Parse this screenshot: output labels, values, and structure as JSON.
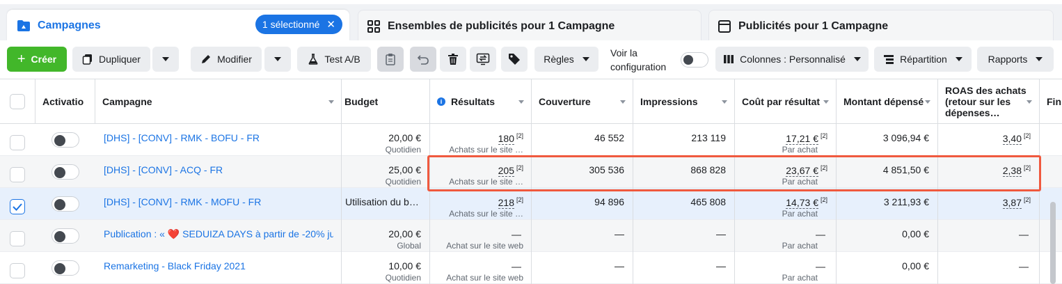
{
  "tabs": {
    "campaigns": {
      "label": "Campagnes",
      "selected_badge": "1 sélectionné"
    },
    "adsets": {
      "label": "Ensembles de publicités pour 1 Campagne"
    },
    "ads": {
      "label": "Publicités pour 1 Campagne"
    }
  },
  "toolbar": {
    "create_label": "Créer",
    "duplicate_label": "Dupliquer",
    "edit_label": "Modifier",
    "ab_test_label": "Test A/B",
    "rules_label": "Règles",
    "view_config_line1": "Voir la",
    "view_config_line2": "configuration",
    "columns_label": "Colonnes : Personnalisé",
    "breakdown_label": "Répartition",
    "reports_label": "Rapports"
  },
  "table": {
    "headers": {
      "activation": "Activatio",
      "campaign": "Campagne",
      "budget": "Budget",
      "results": "Résultats",
      "reach": "Couverture",
      "impressions": "Impressions",
      "cost_per_result": "Coût par résultat",
      "amount_spent": "Montant dépensé",
      "roas_line1": "ROAS des achats",
      "roas_line2": "(retour sur les",
      "roas_line3": "dépenses…",
      "end": "Fin"
    },
    "rows": [
      {
        "name": "[DHS] - [CONV] - RMK - BOFU - FR",
        "budget": "20,00 €",
        "budget_type": "Quotidien",
        "results": "180",
        "results_fn": "[2]",
        "results_sub": "Achats sur le site …",
        "reach": "46 552",
        "impressions": "213 119",
        "cpr": "17,21 €",
        "cpr_fn": "[2]",
        "cpr_sub": "Par achat",
        "spent": "3 096,94 €",
        "roas": "3,40",
        "roas_fn": "[2]"
      },
      {
        "name": "[DHS] - [CONV] - ACQ - FR",
        "budget": "25,00 €",
        "budget_type": "Quotidien",
        "results": "205",
        "results_fn": "[2]",
        "results_sub": "Achats sur le site …",
        "reach": "305 536",
        "impressions": "868 828",
        "cpr": "23,67 €",
        "cpr_fn": "[2]",
        "cpr_sub": "Par achat",
        "spent": "4 851,50 €",
        "roas": "2,38",
        "roas_fn": "[2]"
      },
      {
        "name": "[DHS] - [CONV] - RMK - MOFU - FR",
        "budget": "Utilisation du b…",
        "budget_type": "",
        "results": "218",
        "results_fn": "[2]",
        "results_sub": "Achats sur le site …",
        "reach": "94 896",
        "impressions": "465 808",
        "cpr": "14,73 €",
        "cpr_fn": "[2]",
        "cpr_sub": "Par achat",
        "spent": "3 211,93 €",
        "roas": "3,87",
        "roas_fn": "[2]"
      },
      {
        "name": "Publication : « ❤️ SEDUIZA DAYS à partir de -20% ju…",
        "budget": "20,00 €",
        "budget_type": "Global",
        "results": "—",
        "results_fn": "",
        "results_sub": "Achat sur le site web",
        "reach": "—",
        "impressions": "—",
        "cpr": "—",
        "cpr_fn": "",
        "cpr_sub": "Par achat",
        "spent": "0,00 €",
        "roas": "—",
        "roas_fn": ""
      },
      {
        "name": "Remarketing - Black Friday 2021",
        "budget": "10,00 €",
        "budget_type": "Quotidien",
        "results": "—",
        "results_fn": "",
        "results_sub": "Achat sur le site web",
        "reach": "—",
        "impressions": "—",
        "cpr": "—",
        "cpr_fn": "",
        "cpr_sub": "Par achat",
        "spent": "0,00 €",
        "roas": "—",
        "roas_fn": ""
      }
    ]
  },
  "icons": [
    "folder-icon",
    "grid-icon",
    "window-icon",
    "close-icon",
    "duplicate-icon",
    "pencil-icon",
    "flask-icon",
    "clipboard-icon",
    "undo-icon",
    "trash-icon",
    "transfer-icon",
    "tag-icon",
    "columns-icon",
    "breakdown-icon",
    "info-icon"
  ],
  "colors": {
    "accent": "#1b74e4",
    "create": "#42b72a",
    "highlight": "#f0593e"
  }
}
